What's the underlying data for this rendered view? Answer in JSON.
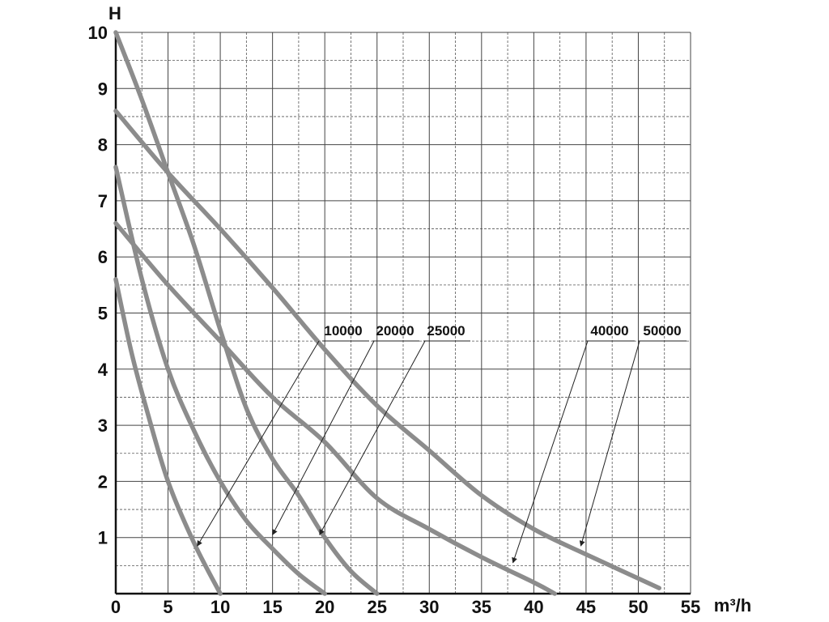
{
  "chart_data": {
    "type": "line",
    "xlabel": "m³/h",
    "ylabel": "H",
    "xlim": [
      0,
      55
    ],
    "ylim": [
      0,
      10
    ],
    "x_ticks": [
      "0",
      "5",
      "10",
      "15",
      "20",
      "25",
      "30",
      "35",
      "40",
      "45",
      "50",
      "55"
    ],
    "y_ticks": [
      "1",
      "2",
      "3",
      "4",
      "5",
      "6",
      "7",
      "8",
      "9",
      "10"
    ],
    "grid": true,
    "series": [
      {
        "name": "10000",
        "points": [
          [
            0,
            5.6
          ],
          [
            1.5,
            4.3
          ],
          [
            3,
            3.25
          ],
          [
            5,
            2.0
          ],
          [
            7.5,
            0.9
          ],
          [
            10,
            0
          ]
        ],
        "arrow_target": [
          7.8,
          0.85
        ]
      },
      {
        "name": "20000",
        "points": [
          [
            0,
            7.6
          ],
          [
            2.5,
            5.6
          ],
          [
            5,
            4.0
          ],
          [
            7.5,
            2.9
          ],
          [
            10,
            2.0
          ],
          [
            12.5,
            1.3
          ],
          [
            15,
            0.8
          ],
          [
            17.5,
            0.35
          ],
          [
            20,
            0
          ]
        ],
        "arrow_target": [
          15,
          1.05
        ]
      },
      {
        "name": "25000",
        "points": [
          [
            0,
            10.0
          ],
          [
            2.5,
            8.8
          ],
          [
            5,
            7.5
          ],
          [
            7.5,
            6.2
          ],
          [
            10,
            4.7
          ],
          [
            12.5,
            3.3
          ],
          [
            15,
            2.4
          ],
          [
            17.5,
            1.75
          ],
          [
            20,
            1.0
          ],
          [
            22.5,
            0.4
          ],
          [
            25,
            0
          ]
        ],
        "arrow_target": [
          19.5,
          1.05
        ]
      },
      {
        "name": "40000",
        "points": [
          [
            0,
            6.6
          ],
          [
            5,
            5.5
          ],
          [
            10,
            4.5
          ],
          [
            15,
            3.5
          ],
          [
            20,
            2.7
          ],
          [
            25,
            1.7
          ],
          [
            30,
            1.15
          ],
          [
            35,
            0.65
          ],
          [
            40,
            0.2
          ],
          [
            42,
            0
          ]
        ],
        "arrow_target": [
          38,
          0.55
        ]
      },
      {
        "name": "50000",
        "points": [
          [
            0,
            8.6
          ],
          [
            5,
            7.5
          ],
          [
            10,
            6.5
          ],
          [
            15,
            5.45
          ],
          [
            20,
            4.35
          ],
          [
            25,
            3.35
          ],
          [
            30,
            2.55
          ],
          [
            35,
            1.75
          ],
          [
            40,
            1.15
          ],
          [
            45,
            0.7
          ],
          [
            52,
            0.1
          ]
        ],
        "arrow_target": [
          44.5,
          0.85
        ]
      }
    ],
    "callout_labels": [
      "10000",
      "20000",
      "25000",
      "40000",
      "50000"
    ],
    "line_color": "#8c8c8c"
  }
}
